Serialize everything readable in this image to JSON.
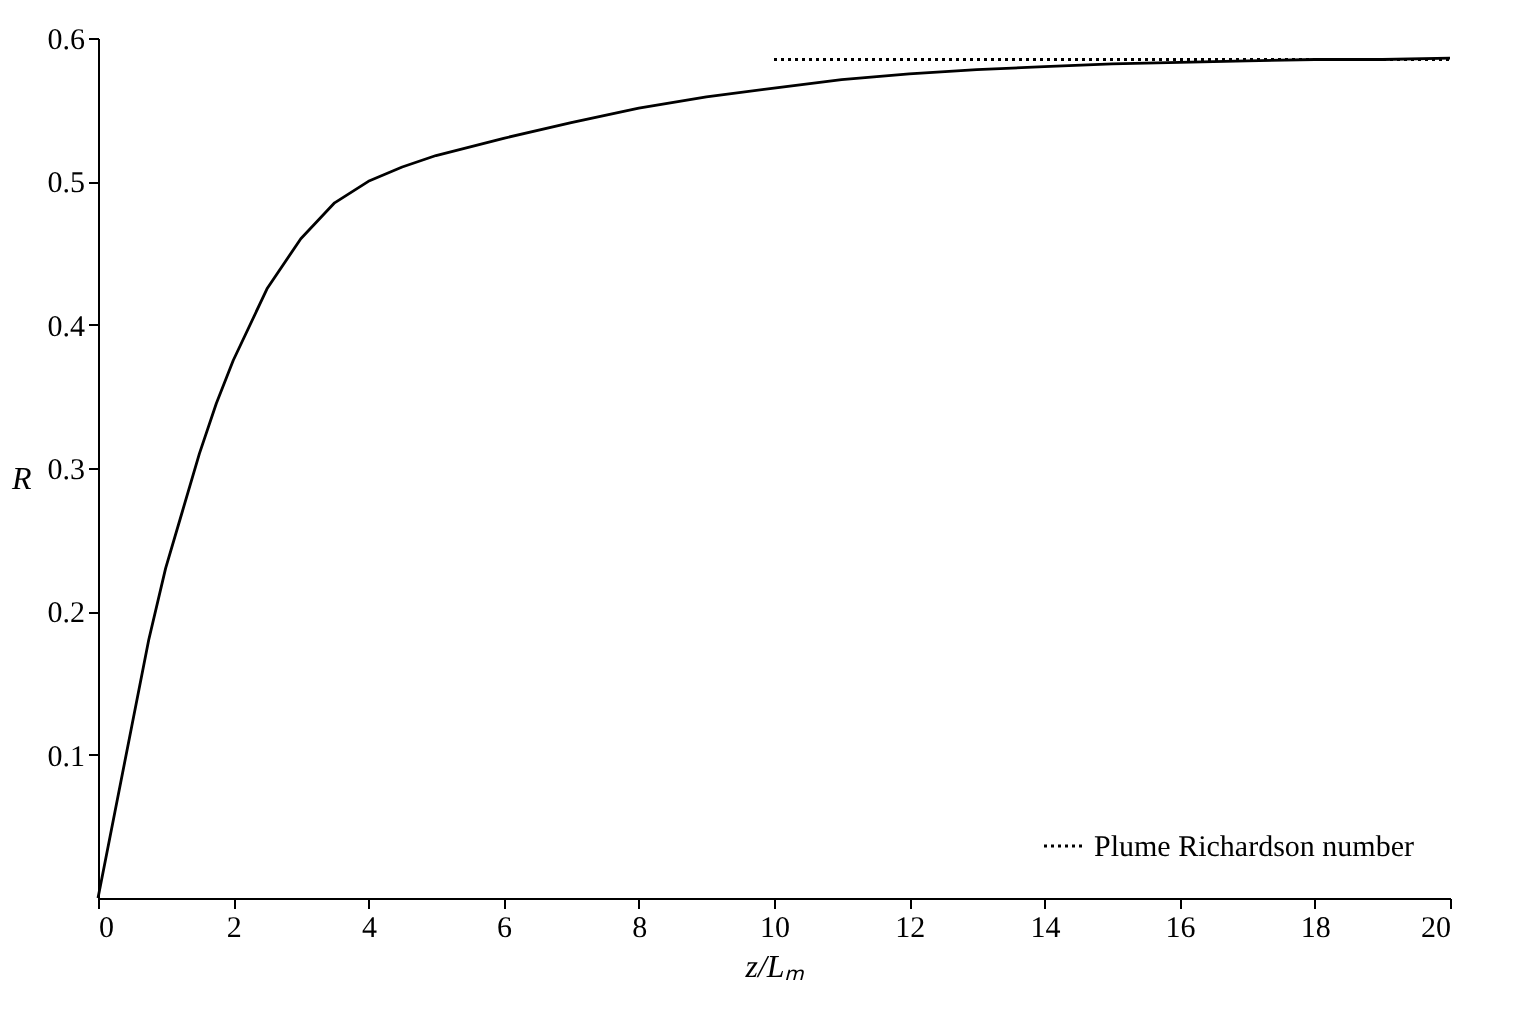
{
  "chart_data": {
    "type": "line",
    "xlabel": "z/Lₘ",
    "ylabel": "R",
    "xlim": [
      0,
      20
    ],
    "ylim": [
      0,
      0.6
    ],
    "xticks": [
      0,
      2,
      4,
      6,
      8,
      10,
      12,
      14,
      16,
      18,
      20
    ],
    "yticks": [
      0.1,
      0.2,
      0.3,
      0.4,
      0.5,
      0.6
    ],
    "grid": false,
    "legend": "bottom right",
    "series": [
      {
        "color": "#000000",
        "line_style": "solid",
        "x": [
          0,
          0.25,
          0.5,
          0.75,
          1,
          1.25,
          1.5,
          1.75,
          2,
          2.5,
          3,
          3.5,
          4,
          4.5,
          5,
          6,
          7,
          8,
          9,
          10,
          11,
          12,
          13,
          14,
          15,
          16,
          17,
          18,
          19,
          20
        ],
        "values": [
          0,
          0.06,
          0.12,
          0.18,
          0.23,
          0.27,
          0.31,
          0.345,
          0.375,
          0.425,
          0.46,
          0.485,
          0.5,
          0.51,
          0.518,
          0.53,
          0.541,
          0.551,
          0.559,
          0.565,
          0.571,
          0.575,
          0.578,
          0.58,
          0.582,
          0.583,
          0.584,
          0.585,
          0.585,
          0.586
        ]
      },
      {
        "name": "Plume Richardson number",
        "color": "#000000",
        "line_style": "dotted",
        "x": [
          10,
          20
        ],
        "values": [
          0.585,
          0.585
        ]
      }
    ]
  }
}
